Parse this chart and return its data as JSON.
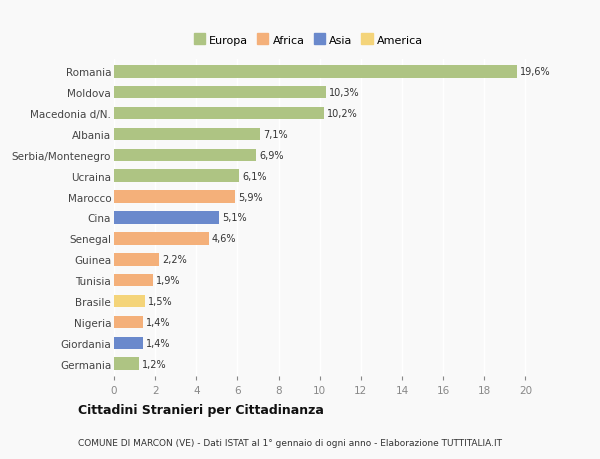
{
  "countries": [
    "Romania",
    "Moldova",
    "Macedonia d/N.",
    "Albania",
    "Serbia/Montenegro",
    "Ucraina",
    "Marocco",
    "Cina",
    "Senegal",
    "Guinea",
    "Tunisia",
    "Brasile",
    "Nigeria",
    "Giordania",
    "Germania"
  ],
  "values": [
    19.6,
    10.3,
    10.2,
    7.1,
    6.9,
    6.1,
    5.9,
    5.1,
    4.6,
    2.2,
    1.9,
    1.5,
    1.4,
    1.4,
    1.2
  ],
  "labels": [
    "19,6%",
    "10,3%",
    "10,2%",
    "7,1%",
    "6,9%",
    "6,1%",
    "5,9%",
    "5,1%",
    "4,6%",
    "2,2%",
    "1,9%",
    "1,5%",
    "1,4%",
    "1,4%",
    "1,2%"
  ],
  "continents": [
    "Europa",
    "Europa",
    "Europa",
    "Europa",
    "Europa",
    "Europa",
    "Africa",
    "Asia",
    "Africa",
    "Africa",
    "Africa",
    "America",
    "Africa",
    "Asia",
    "Europa"
  ],
  "colors": {
    "Europa": "#aec483",
    "Africa": "#f4b07a",
    "Asia": "#6a89cc",
    "America": "#f4d47a"
  },
  "legend_order": [
    "Europa",
    "Africa",
    "Asia",
    "America"
  ],
  "title": "Cittadini Stranieri per Cittadinanza",
  "subtitle": "COMUNE DI MARCON (VE) - Dati ISTAT al 1° gennaio di ogni anno - Elaborazione TUTTITALIA.IT",
  "xlim": [
    0,
    21
  ],
  "xticks": [
    0,
    2,
    4,
    6,
    8,
    10,
    12,
    14,
    16,
    18,
    20
  ],
  "background_color": "#f9f9f9",
  "grid_color": "#ffffff",
  "bar_height": 0.6
}
